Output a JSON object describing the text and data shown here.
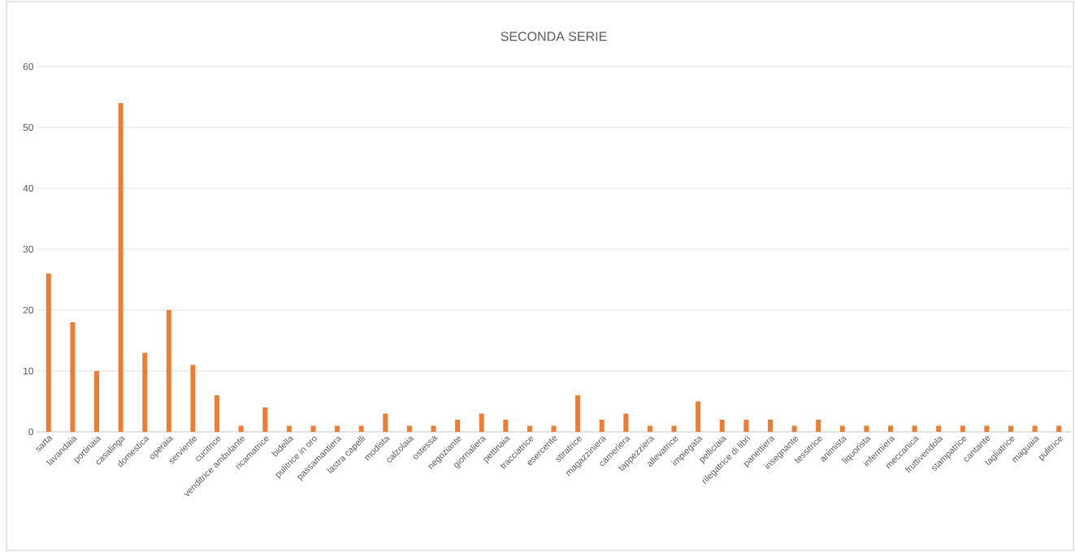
{
  "chart_data": {
    "type": "bar",
    "title": "SECONDA SERIE",
    "categories": [
      "sarta",
      "lavandaia",
      "portinaia",
      "casalinga",
      "domestica",
      "operaia",
      "serviente",
      "cucitrice",
      "venditrice ambulante",
      "ricamatrice",
      "bidella",
      "pulitrice in oro",
      "passamantiera",
      "lastra capelli",
      "modista",
      "calzolaia",
      "ostessa",
      "negoziante",
      "giornaliera",
      "pettinaia",
      "tracciatrice",
      "esercente",
      "stiratrice",
      "magazziniera",
      "cameriera",
      "tappezziera",
      "allevatrice",
      "impiegata",
      "pelliciaia",
      "rilegatrice di libri",
      "panettiera",
      "insegnante",
      "tessitrice",
      "animista",
      "liquorista",
      "infermiera",
      "meccanica",
      "fruttivendola",
      "stampatrice",
      "cantante",
      "tagliatrice",
      "maguaia",
      "pulitrice"
    ],
    "values": [
      26,
      18,
      10,
      54,
      13,
      20,
      11,
      6,
      1,
      4,
      1,
      1,
      1,
      1,
      3,
      1,
      1,
      2,
      3,
      2,
      1,
      1,
      6,
      2,
      3,
      1,
      1,
      5,
      2,
      2,
      2,
      1,
      2,
      1,
      1,
      1,
      1,
      1,
      1,
      1,
      1,
      1,
      1
    ],
    "color": "#ed7d31",
    "ylim": [
      0,
      60
    ],
    "yticks": [
      0,
      10,
      20,
      30,
      40,
      50,
      60
    ],
    "grid": "y"
  }
}
